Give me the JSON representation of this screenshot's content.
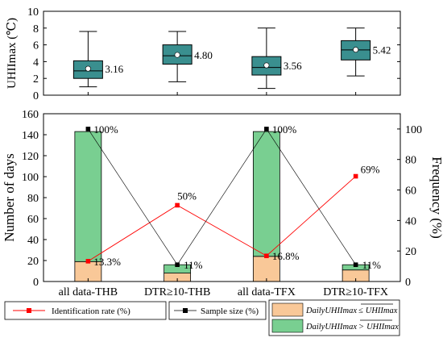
{
  "chart_data": [
    {
      "type": "box",
      "ylabel": "UHIImax (℃)",
      "ylim": [
        0,
        10
      ],
      "yticks": [
        0,
        2,
        4,
        6,
        8,
        10
      ],
      "categories": [
        "all data-THB",
        "DTR≥10-THB",
        "all data-TFX",
        "DTR≥10-TFX"
      ],
      "boxes": [
        {
          "whisker_low": 1.0,
          "q1": 2.0,
          "median": 2.9,
          "q3": 4.1,
          "whisker_high": 7.6,
          "mean": 3.16,
          "label": "3.16"
        },
        {
          "whisker_low": 1.6,
          "q1": 3.7,
          "median": 4.7,
          "q3": 6.0,
          "whisker_high": 7.6,
          "mean": 4.8,
          "label": "4.80"
        },
        {
          "whisker_low": 0.8,
          "q1": 2.4,
          "median": 3.3,
          "q3": 4.6,
          "whisker_high": 8.0,
          "mean": 3.56,
          "label": "3.56"
        },
        {
          "whisker_low": 2.3,
          "q1": 4.2,
          "median": 5.4,
          "q3": 6.5,
          "whisker_high": 8.0,
          "mean": 5.42,
          "label": "5.42"
        }
      ],
      "box_color": "#3a8f8f"
    },
    {
      "type": "bar",
      "stacked": true,
      "categories": [
        "all data-THB",
        "DTR≥10-THB",
        "all data-TFX",
        "DTR≥10-TFX"
      ],
      "ylabel": "Number of days",
      "ylim": [
        0,
        160
      ],
      "yticks": [
        0,
        20,
        40,
        60,
        80,
        100,
        120,
        140,
        160
      ],
      "y2label": "Frequency (%)",
      "y2lim": [
        0,
        110
      ],
      "y2ticks": [
        0,
        20,
        40,
        60,
        80,
        100
      ],
      "series": [
        {
          "name": "DailyUHIImax ≤ UHIImax (mean)",
          "values": [
            19,
            8,
            24,
            11
          ],
          "color": "#f9c898"
        },
        {
          "name": "DailyUHIImax > UHIImax (mean)",
          "values": [
            124,
            8,
            119,
            5
          ],
          "color": "#79cf91"
        }
      ],
      "lines": [
        {
          "name": "Identification rate (%)",
          "axis": "right",
          "values": [
            13.3,
            50,
            16.8,
            69
          ],
          "labels": [
            "13.3%",
            "50%",
            "16.8%",
            "69%"
          ],
          "color": "#ff0000"
        },
        {
          "name": "Sample size (%)",
          "axis": "right",
          "values": [
            100,
            11,
            100,
            11
          ],
          "labels": [
            "100%",
            "11%",
            "100%",
            "11%"
          ],
          "color": "#000000"
        }
      ]
    }
  ],
  "legend": {
    "identification_label": "Identification rate (%)",
    "sample_label": "Sample size (%)",
    "bar_le_prefix": "DailyUHIImax",
    "bar_le_op": "≤",
    "bar_le_suffix": "UHIImax",
    "bar_gt_prefix": "DailyUHIImax",
    "bar_gt_op": ">",
    "bar_gt_suffix": "UHIImax"
  }
}
